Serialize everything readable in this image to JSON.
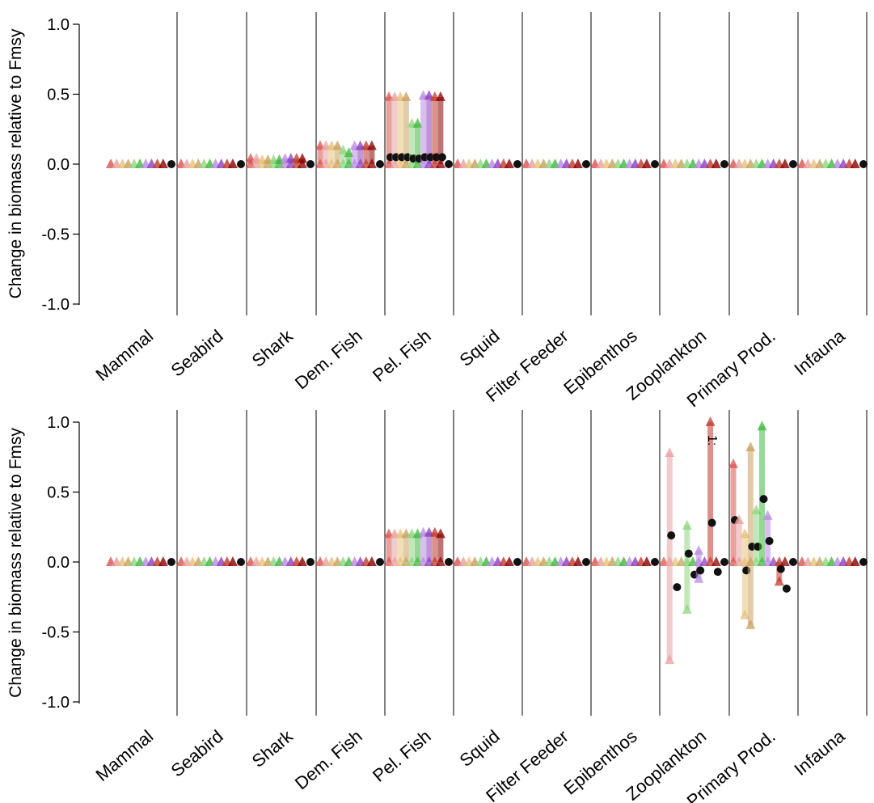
{
  "chart_data": [
    {
      "type": "scatter",
      "panel": "top",
      "ylabel": "Change in biomass relative to Fmsy",
      "ylim": [
        -1.0,
        1.0
      ],
      "yticks": [
        "1.0",
        "0.5",
        "0.0",
        "-0.5",
        "-1.0"
      ],
      "categories": [
        "Mammal",
        "Seabird",
        "Shark",
        "Dem. Fish",
        "Pel. Fish",
        "Squid",
        "Filter Feeder",
        "Epibenthos",
        "Zooplankton",
        "Primary Prod.",
        "Infauna"
      ],
      "series_colors": [
        "#d9534f",
        "#e8a0a0",
        "#e6c27a",
        "#c9a060",
        "#8fd67f",
        "#3fb83f",
        "#b98ae0",
        "#8a3fc0",
        "#c0392b",
        "#8b0000"
      ],
      "points": [
        {
          "cat": 3,
          "hi": [
            0.13,
            0.13,
            0.13,
            0.13,
            0.1,
            0.08,
            0.13,
            0.13,
            0.13,
            0.13
          ],
          "mid": [
            0.02,
            0.02,
            0.02,
            0.02,
            0.02,
            0.02,
            0.02,
            0.02,
            0.02,
            0.02
          ]
        },
        {
          "cat": 4,
          "hi": [
            0.48,
            0.48,
            0.48,
            0.48,
            0.29,
            0.29,
            0.49,
            0.49,
            0.48,
            0.48
          ],
          "mid": [
            0.05,
            0.05,
            0.05,
            0.05,
            0.04,
            0.04,
            0.05,
            0.05,
            0.05,
            0.05
          ]
        },
        {
          "cat": 2,
          "hi": [
            0.04,
            0.04,
            0.03,
            0.03,
            0.03,
            0.03,
            0.04,
            0.04,
            0.04,
            0.04
          ],
          "mid": [
            0.01,
            0.01,
            0.01,
            0.01,
            0.01,
            0.01,
            0.01,
            0.01,
            0.01,
            0.01
          ]
        }
      ]
    },
    {
      "type": "scatter",
      "panel": "bottom",
      "ylabel": "Change in biomass relative to Fmsy",
      "ylim": [
        -1.0,
        1.0
      ],
      "yticks": [
        "1.0",
        "0.5",
        "0.0",
        "-0.5",
        "-1.0"
      ],
      "categories": [
        "Mammal",
        "Seabird",
        "Shark",
        "Dem. Fish",
        "Pel. Fish",
        "Squid",
        "Filter Feeder",
        "Epibenthos",
        "Zooplankton",
        "Primary Prod.",
        "Infauna"
      ],
      "annotation": "1:",
      "points": [
        {
          "cat": 4,
          "hi": [
            0.2,
            0.2,
            0.2,
            0.2,
            0.2,
            0.2,
            0.21,
            0.21,
            0.21,
            0.2
          ],
          "mid": [
            0.02,
            0.02,
            0.02,
            0.02,
            0.02,
            0.02,
            0.03,
            0.03,
            0.03,
            0.02
          ]
        },
        {
          "cat": 8,
          "hi": [
            0.0,
            0.78,
            0.0,
            0.0,
            0.26,
            0.0,
            0.08,
            0.0,
            1.0,
            0.0
          ],
          "lo": [
            0.0,
            -0.7,
            0.0,
            0.0,
            -0.34,
            0.0,
            -0.12,
            0.0,
            0.0,
            0.0
          ],
          "mid": [
            0.0,
            0.19,
            -0.18,
            0.0,
            0.06,
            -0.09,
            -0.06,
            0.0,
            0.28,
            -0.07
          ]
        },
        {
          "cat": 9,
          "hi": [
            0.7,
            0.3,
            0.2,
            0.82,
            0.37,
            0.97,
            0.33,
            0.0,
            0.0,
            0.0
          ],
          "lo": [
            0.0,
            0.0,
            -0.38,
            -0.45,
            0.0,
            0.0,
            0.0,
            0.0,
            -0.14,
            0.0
          ],
          "mid": [
            0.3,
            0.0,
            -0.06,
            0.11,
            0.11,
            0.45,
            0.15,
            0.0,
            -0.05,
            -0.19
          ]
        }
      ]
    }
  ]
}
